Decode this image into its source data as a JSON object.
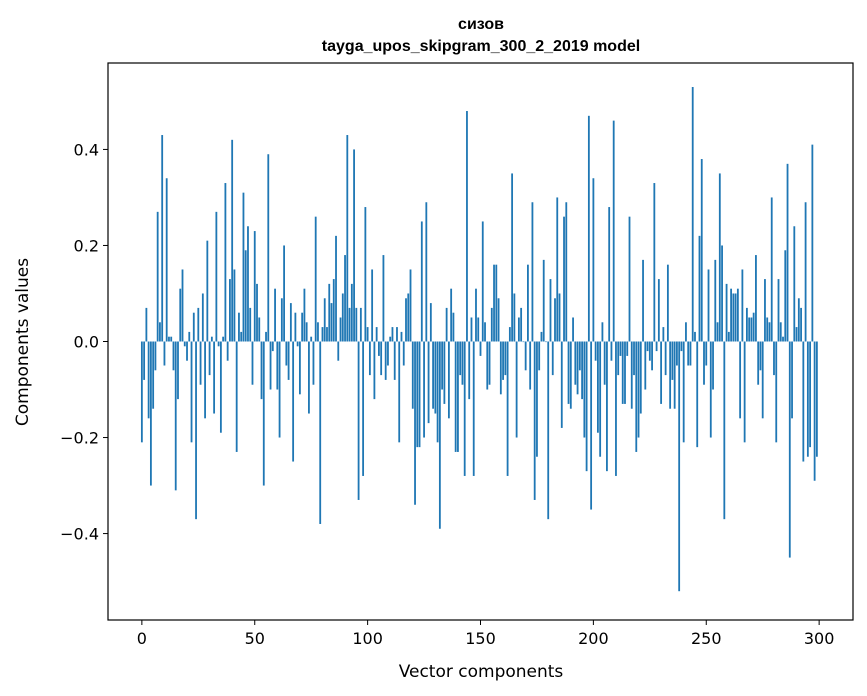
{
  "chart_data": {
    "type": "bar",
    "title": "сизов",
    "subtitle": "tayga_upos_skipgram_300_2_2019 model",
    "xlabel": "Vector components",
    "ylabel": "Components values",
    "xlim": [
      -15,
      315
    ],
    "ylim": [
      -0.58,
      0.58
    ],
    "xticks": [
      0,
      50,
      100,
      150,
      200,
      250,
      300
    ],
    "yticks": [
      -0.4,
      -0.2,
      0.0,
      0.2,
      0.4
    ],
    "xtick_labels": [
      "0",
      "50",
      "100",
      "150",
      "200",
      "250",
      "300"
    ],
    "ytick_labels": [
      "−0.4",
      "−0.2",
      "0.0",
      "0.2",
      "0.4"
    ],
    "grid": false,
    "bar_color": "#1f77b4",
    "x": "0..299",
    "values": [
      -0.21,
      -0.08,
      0.07,
      -0.16,
      -0.3,
      -0.14,
      -0.06,
      0.27,
      0.04,
      0.43,
      -0.05,
      0.34,
      0.01,
      0.01,
      -0.06,
      -0.31,
      -0.12,
      0.11,
      0.15,
      -0.01,
      -0.04,
      0.02,
      -0.21,
      0.06,
      -0.37,
      0.07,
      -0.09,
      0.1,
      -0.16,
      0.21,
      -0.07,
      0.01,
      -0.15,
      0.27,
      -0.01,
      -0.19,
      0.01,
      0.33,
      -0.04,
      0.13,
      0.42,
      0.15,
      -0.23,
      0.06,
      0.02,
      0.31,
      0.19,
      0.24,
      0.07,
      -0.09,
      0.23,
      0.12,
      0.05,
      -0.12,
      -0.3,
      0.02,
      0.39,
      -0.1,
      -0.02,
      0.11,
      -0.1,
      -0.2,
      0.09,
      0.2,
      -0.05,
      -0.08,
      0.08,
      -0.25,
      0.06,
      -0.01,
      -0.11,
      0.06,
      0.11,
      0.04,
      -0.15,
      0.01,
      -0.09,
      0.26,
      0.04,
      -0.38,
      0.03,
      0.09,
      0.03,
      0.12,
      0.08,
      0.13,
      0.22,
      -0.04,
      0.05,
      0.1,
      0.18,
      0.43,
      0.07,
      0.12,
      0.4,
      0.07,
      -0.33,
      0.07,
      -0.28,
      0.28,
      0.03,
      -0.07,
      0.15,
      -0.12,
      0.03,
      -0.03,
      -0.07,
      0.18,
      -0.08,
      -0.05,
      0.01,
      0.03,
      -0.08,
      0.03,
      -0.21,
      0.02,
      -0.05,
      0.09,
      0.1,
      0.15,
      -0.14,
      -0.34,
      -0.22,
      -0.22,
      0.25,
      -0.2,
      0.29,
      -0.17,
      0.08,
      -0.14,
      -0.15,
      -0.21,
      -0.39,
      -0.1,
      -0.13,
      0.07,
      -0.16,
      0.11,
      0.06,
      -0.23,
      -0.23,
      -0.07,
      -0.09,
      -0.28,
      0.48,
      -0.12,
      0.05,
      -0.28,
      0.11,
      0.05,
      -0.03,
      0.25,
      0.04,
      -0.1,
      -0.09,
      0.07,
      0.16,
      0.16,
      0.09,
      -0.11,
      -0.08,
      -0.07,
      -0.28,
      0.03,
      0.35,
      0.1,
      -0.2,
      0.05,
      0.07,
      0.0,
      -0.06,
      0.16,
      -0.1,
      0.29,
      -0.33,
      -0.24,
      -0.06,
      0.02,
      0.17,
      0.0,
      -0.37,
      0.13,
      -0.07,
      0.09,
      0.3,
      0.1,
      -0.18,
      0.26,
      0.29,
      -0.13,
      -0.14,
      0.05,
      -0.09,
      -0.11,
      -0.06,
      -0.12,
      -0.2,
      -0.27,
      0.47,
      -0.35,
      0.34,
      -0.04,
      -0.19,
      -0.24,
      0.04,
      -0.09,
      -0.27,
      0.28,
      -0.04,
      0.46,
      -0.28,
      -0.07,
      -0.03,
      -0.13,
      -0.13,
      -0.03,
      0.26,
      -0.14,
      -0.07,
      -0.23,
      -0.2,
      -0.15,
      0.17,
      -0.1,
      -0.02,
      -0.04,
      -0.06,
      0.33,
      -0.02,
      0.13,
      -0.13,
      0.03,
      -0.07,
      0.16,
      -0.14,
      -0.08,
      -0.14,
      -0.05,
      -0.52,
      -0.02,
      -0.21,
      0.04,
      -0.05,
      -0.05,
      0.53,
      0.02,
      -0.22,
      0.22,
      0.38,
      -0.09,
      -0.05,
      0.15,
      -0.2,
      -0.1,
      0.17,
      0.04,
      0.35,
      0.2,
      -0.37,
      0.12,
      0.02,
      0.11,
      0.1,
      0.1,
      0.11,
      -0.16,
      0.15,
      -0.21,
      0.07,
      0.05,
      0.05,
      0.06,
      0.18,
      -0.09,
      -0.06,
      -0.16,
      0.13,
      0.05,
      0.04,
      0.3,
      -0.07,
      -0.21,
      0.13,
      0.04,
      0.01,
      0.19,
      0.37,
      -0.45,
      -0.16,
      0.24,
      0.03,
      0.09,
      0.07,
      -0.25,
      0.29,
      -0.24,
      -0.22,
      0.41,
      -0.29,
      -0.24
    ]
  }
}
